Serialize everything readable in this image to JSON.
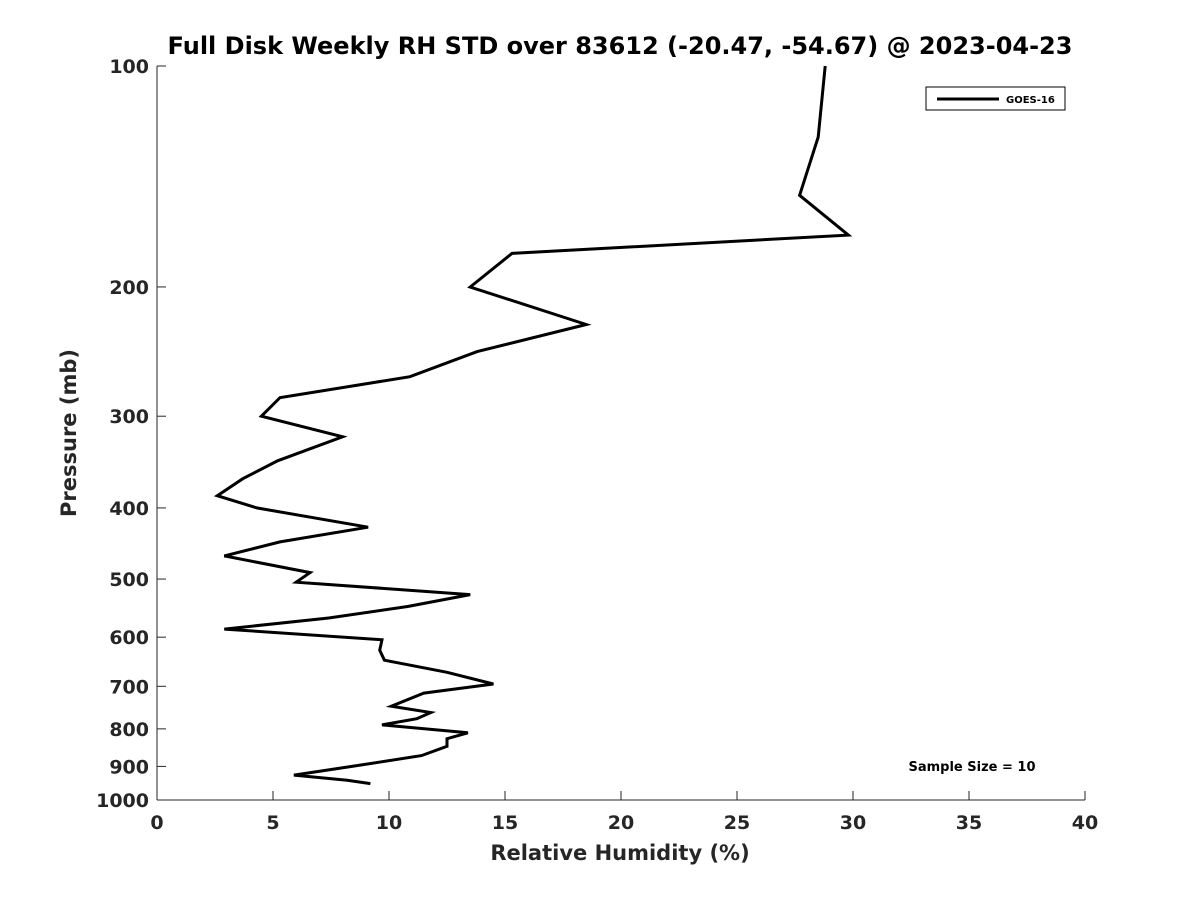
{
  "chart_data": {
    "type": "line",
    "title": "Full Disk Weekly RH STD over 83612 (-20.47, -54.67) @ 2023-04-23",
    "xlabel": "Relative Humidity (%)",
    "ylabel": "Pressure (mb)",
    "xlim": [
      0,
      40
    ],
    "ylim": [
      100,
      1000
    ],
    "yscale": "log",
    "y_reversed": true,
    "grid": false,
    "x_ticks": [
      0,
      5,
      10,
      15,
      20,
      25,
      30,
      35,
      40
    ],
    "y_ticks": [
      100,
      200,
      300,
      400,
      500,
      600,
      700,
      800,
      900,
      1000
    ],
    "legend_position": "top-right",
    "annotation": "Sample Size = 10",
    "series": [
      {
        "name": "GOES-16",
        "color": "#000000",
        "x": [
          28.8,
          28.5,
          27.7,
          29.8,
          15.3,
          13.5,
          18.5,
          13.8,
          10.9,
          5.3,
          4.5,
          8.0,
          5.2,
          3.7,
          2.6,
          4.3,
          9.1,
          5.3,
          2.9,
          6.6,
          6.0,
          13.5,
          10.8,
          7.4,
          2.9,
          9.7,
          9.6,
          9.8,
          12.5,
          14.5,
          11.5,
          10.1,
          11.8,
          11.2,
          9.7,
          13.4,
          12.5,
          12.5,
          11.4,
          8.4,
          5.9,
          8.2,
          9.2
        ],
        "y": [
          100,
          125,
          150,
          170,
          180,
          200,
          225,
          245,
          265,
          283,
          300,
          320,
          345,
          365,
          385,
          400,
          425,
          445,
          465,
          490,
          505,
          525,
          545,
          565,
          585,
          605,
          625,
          645,
          670,
          695,
          715,
          745,
          760,
          775,
          790,
          810,
          825,
          845,
          870,
          900,
          925,
          940,
          950
        ]
      }
    ]
  }
}
